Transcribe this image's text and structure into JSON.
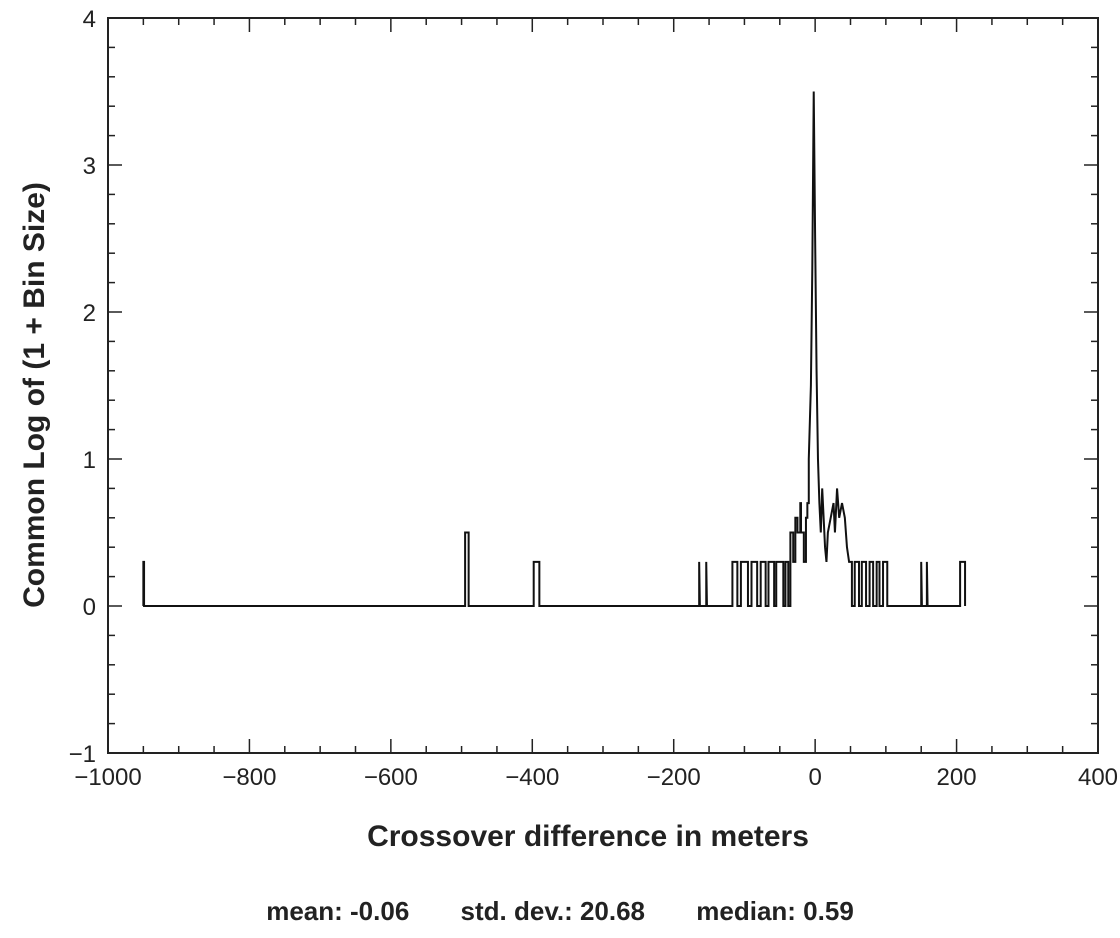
{
  "chart_data": {
    "type": "histogram-line",
    "title": "",
    "xlabel": "Crossover difference in meters",
    "ylabel": "Common Log of (1 + Bin Size)",
    "xlim": [
      -1000,
      400
    ],
    "ylim": [
      -1,
      4
    ],
    "x_ticks": [
      -1000,
      -800,
      -600,
      -400,
      -200,
      0,
      200,
      400
    ],
    "x_tick_labels": [
      "−1000",
      "−800",
      "−600",
      "−400",
      "−200",
      "0",
      "200",
      "400"
    ],
    "y_ticks": [
      -1,
      0,
      1,
      2,
      3,
      4
    ],
    "y_tick_labels": [
      "−1",
      "0",
      "1",
      "2",
      "3",
      "4"
    ],
    "grid": false,
    "legend": "none",
    "line_color": "#111111",
    "series": [
      {
        "points": [
          [
            -950,
            0.0
          ],
          [
            -950,
            0.3
          ],
          [
            -949,
            0.3
          ],
          [
            -949,
            0.0
          ],
          [
            -495,
            0.0
          ],
          [
            -495,
            0.5
          ],
          [
            -490,
            0.5
          ],
          [
            -490,
            0.0
          ],
          [
            -398,
            0.0
          ],
          [
            -398,
            0.3
          ],
          [
            -390,
            0.3
          ],
          [
            -390,
            0.0
          ],
          [
            -164,
            0.0
          ],
          [
            -164,
            0.3
          ],
          [
            -163,
            0.0
          ],
          [
            -154,
            0.0
          ],
          [
            -154,
            0.3
          ],
          [
            -153,
            0.0
          ],
          [
            -117,
            0.0
          ],
          [
            -117,
            0.3
          ],
          [
            -110,
            0.3
          ],
          [
            -110,
            0.0
          ],
          [
            -105,
            0.0
          ],
          [
            -105,
            0.3
          ],
          [
            -95,
            0.3
          ],
          [
            -95,
            0.0
          ],
          [
            -90,
            0.0
          ],
          [
            -90,
            0.3
          ],
          [
            -82,
            0.3
          ],
          [
            -82,
            0.0
          ],
          [
            -77,
            0.0
          ],
          [
            -77,
            0.3
          ],
          [
            -70,
            0.3
          ],
          [
            -70,
            0.0
          ],
          [
            -66,
            0.0
          ],
          [
            -66,
            0.3
          ],
          [
            -58,
            0.3
          ],
          [
            -58,
            0.0
          ],
          [
            -55,
            0.0
          ],
          [
            -55,
            0.3
          ],
          [
            -45,
            0.3
          ],
          [
            -45,
            0.0
          ],
          [
            -42,
            0.0
          ],
          [
            -42,
            0.3
          ],
          [
            -38,
            0.3
          ],
          [
            -38,
            0.0
          ],
          [
            -35,
            0.0
          ],
          [
            -35,
            0.5
          ],
          [
            -31,
            0.5
          ],
          [
            -31,
            0.3
          ],
          [
            -28,
            0.3
          ],
          [
            -28,
            0.6
          ],
          [
            -25,
            0.6
          ],
          [
            -25,
            0.5
          ],
          [
            -21,
            0.5
          ],
          [
            -21,
            0.7
          ],
          [
            -20,
            0.7
          ],
          [
            -20,
            0.5
          ],
          [
            -16,
            0.5
          ],
          [
            -16,
            0.3
          ],
          [
            -13,
            0.3
          ],
          [
            -13,
            0.6
          ],
          [
            -11,
            0.6
          ],
          [
            -11,
            0.7
          ],
          [
            -9,
            0.7
          ],
          [
            -9,
            1.0
          ],
          [
            -6,
            1.5
          ],
          [
            -4,
            2.3
          ],
          [
            -2,
            3.5
          ],
          [
            0,
            2.5
          ],
          [
            2,
            1.6
          ],
          [
            4,
            1.0
          ],
          [
            6,
            0.7
          ],
          [
            8,
            0.5
          ],
          [
            10,
            0.8
          ],
          [
            12,
            0.6
          ],
          [
            14,
            0.4
          ],
          [
            16,
            0.3
          ],
          [
            18,
            0.5
          ],
          [
            22,
            0.6
          ],
          [
            26,
            0.7
          ],
          [
            28,
            0.5
          ],
          [
            31,
            0.8
          ],
          [
            34,
            0.6
          ],
          [
            38,
            0.7
          ],
          [
            42,
            0.6
          ],
          [
            45,
            0.4
          ],
          [
            48,
            0.3
          ],
          [
            52,
            0.3
          ],
          [
            52,
            0.0
          ],
          [
            56,
            0.0
          ],
          [
            56,
            0.3
          ],
          [
            62,
            0.3
          ],
          [
            62,
            0.0
          ],
          [
            66,
            0.0
          ],
          [
            66,
            0.3
          ],
          [
            72,
            0.3
          ],
          [
            72,
            0.0
          ],
          [
            77,
            0.0
          ],
          [
            77,
            0.3
          ],
          [
            82,
            0.3
          ],
          [
            82,
            0.0
          ],
          [
            87,
            0.0
          ],
          [
            87,
            0.3
          ],
          [
            91,
            0.3
          ],
          [
            91,
            0.0
          ],
          [
            96,
            0.0
          ],
          [
            96,
            0.3
          ],
          [
            102,
            0.3
          ],
          [
            102,
            0.0
          ],
          [
            150,
            0.0
          ],
          [
            150,
            0.3
          ],
          [
            151,
            0.0
          ],
          [
            158,
            0.0
          ],
          [
            158,
            0.3
          ],
          [
            159,
            0.0
          ],
          [
            205,
            0.0
          ],
          [
            205,
            0.3
          ],
          [
            212,
            0.3
          ],
          [
            212,
            0.0
          ]
        ]
      }
    ]
  },
  "stats": {
    "mean": "mean: -0.06",
    "std_dev": "std. dev.: 20.68",
    "median": "median: 0.59"
  }
}
